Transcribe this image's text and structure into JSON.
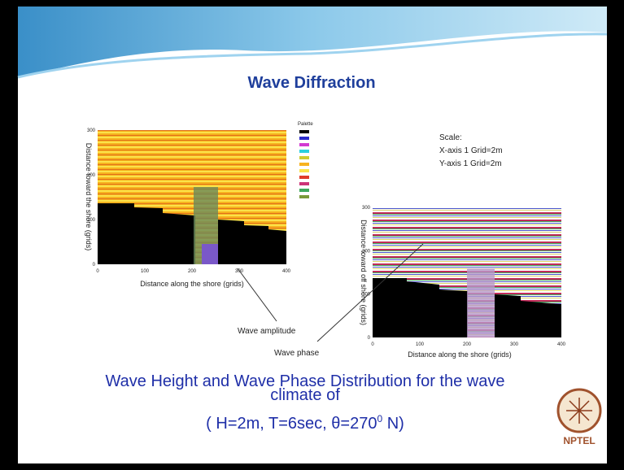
{
  "title": "Wave Diffraction",
  "left_plot": {
    "y_label": "Distance toward the shore (grids)",
    "x_label": "Distance along the shore (grids)",
    "xticks": [
      0,
      100,
      200,
      300,
      400
    ],
    "yticks": [
      0,
      100,
      200,
      300
    ],
    "legend_title": "Palette"
  },
  "scale": {
    "heading": "Scale:",
    "x": "X-axis 1 Grid=2m",
    "y": "Y-axis 1 Grid=2m"
  },
  "right_plot": {
    "y_label": "Distance toward off shore (grids)",
    "x_label": "Distance along the shore (grids)",
    "xticks": [
      0,
      100,
      200,
      300,
      400
    ],
    "yticks": [
      0,
      100,
      200,
      300
    ]
  },
  "annotations": {
    "amplitude": "Wave amplitude",
    "phase": "Wave phase"
  },
  "caption": {
    "line1": "Wave Height and Wave Phase Distribution for the wave",
    "line2": "climate of",
    "line3_pre": "( H=2m, T=6sec, ",
    "line3_theta": "θ",
    "line3_mid": "=270",
    "line3_sup": "0",
    "line3_post": " N)"
  },
  "logo": "NPTEL"
}
